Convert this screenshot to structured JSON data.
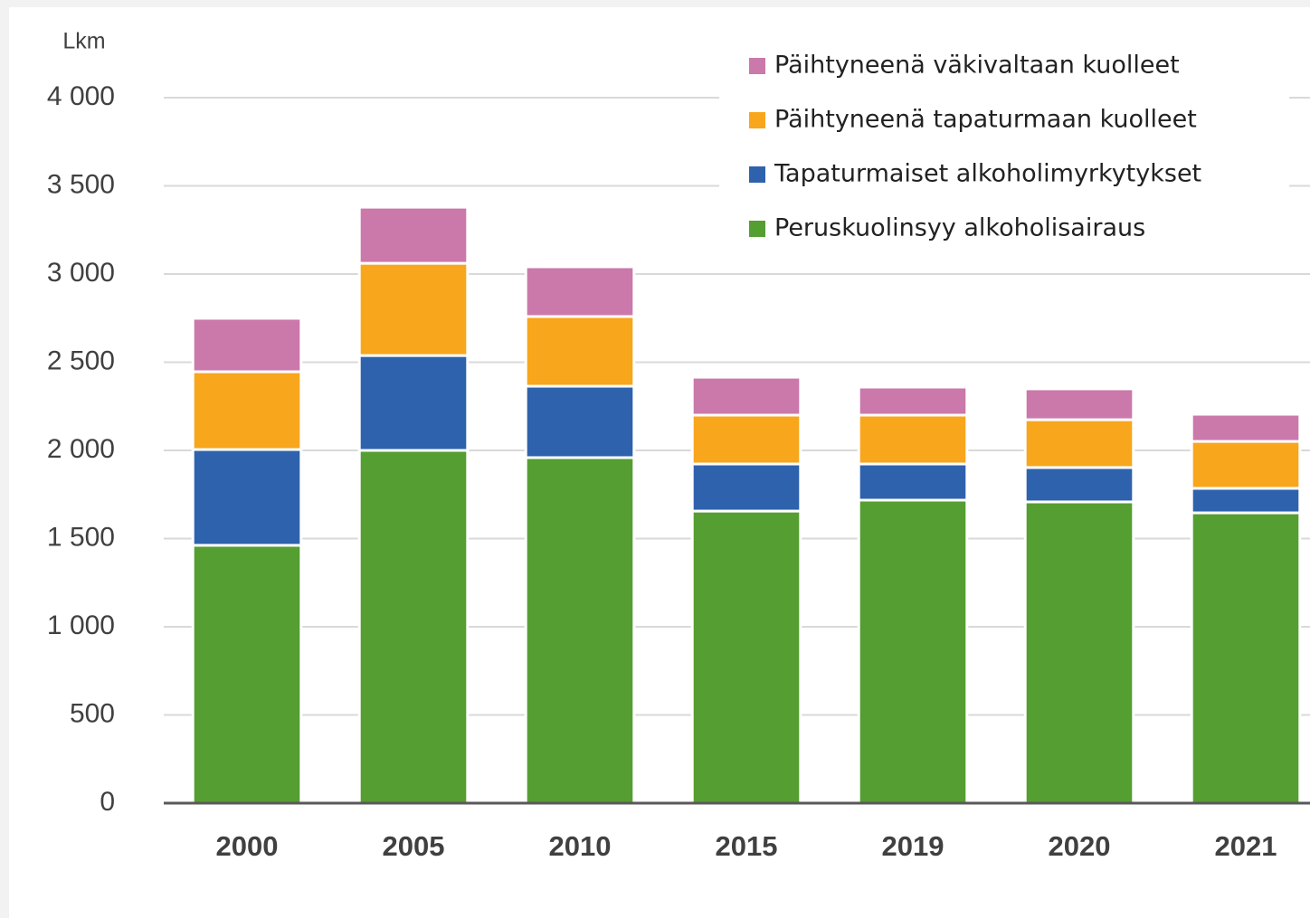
{
  "chart_data": {
    "type": "stacked_bar",
    "y_label": "Lkm",
    "categories": [
      "2000",
      "2005",
      "2010",
      "2015",
      "2019",
      "2020",
      "2021"
    ],
    "series": [
      {
        "name": "Peruskuolinsyy alkoholisairaus",
        "color": "#559e31",
        "values": [
          1462,
          2000,
          1959,
          1656,
          1718,
          1708,
          1646
        ]
      },
      {
        "name": "Tapaturmaiset alkoholimyrkytykset",
        "color": "#2e62ad",
        "values": [
          543,
          538,
          405,
          267,
          205,
          195,
          139
        ]
      },
      {
        "name": "Päihtyneenä tapaturmaan kuolleet",
        "color": "#f8a61c",
        "values": [
          441,
          523,
          395,
          277,
          277,
          271,
          266
        ]
      },
      {
        "name": "Päihtyneenä väkivaltaan kuolleet",
        "color": "#cb78ab",
        "values": [
          303,
          318,
          282,
          215,
          159,
          175,
          154
        ]
      }
    ],
    "ylim": [
      0,
      4000
    ],
    "yticks": [
      0,
      500,
      {
        "value": 1000,
        "label": "1 000"
      },
      {
        "value": 1500,
        "label": "1 500"
      },
      {
        "value": 2000,
        "label": "2 000"
      },
      {
        "value": 2500,
        "label": "2 500"
      },
      {
        "value": 3000,
        "label": "3 000"
      },
      {
        "value": 3500,
        "label": "3 500"
      },
      {
        "value": 4000,
        "label": "4 000"
      }
    ],
    "grid": true,
    "legend": "top-right"
  }
}
